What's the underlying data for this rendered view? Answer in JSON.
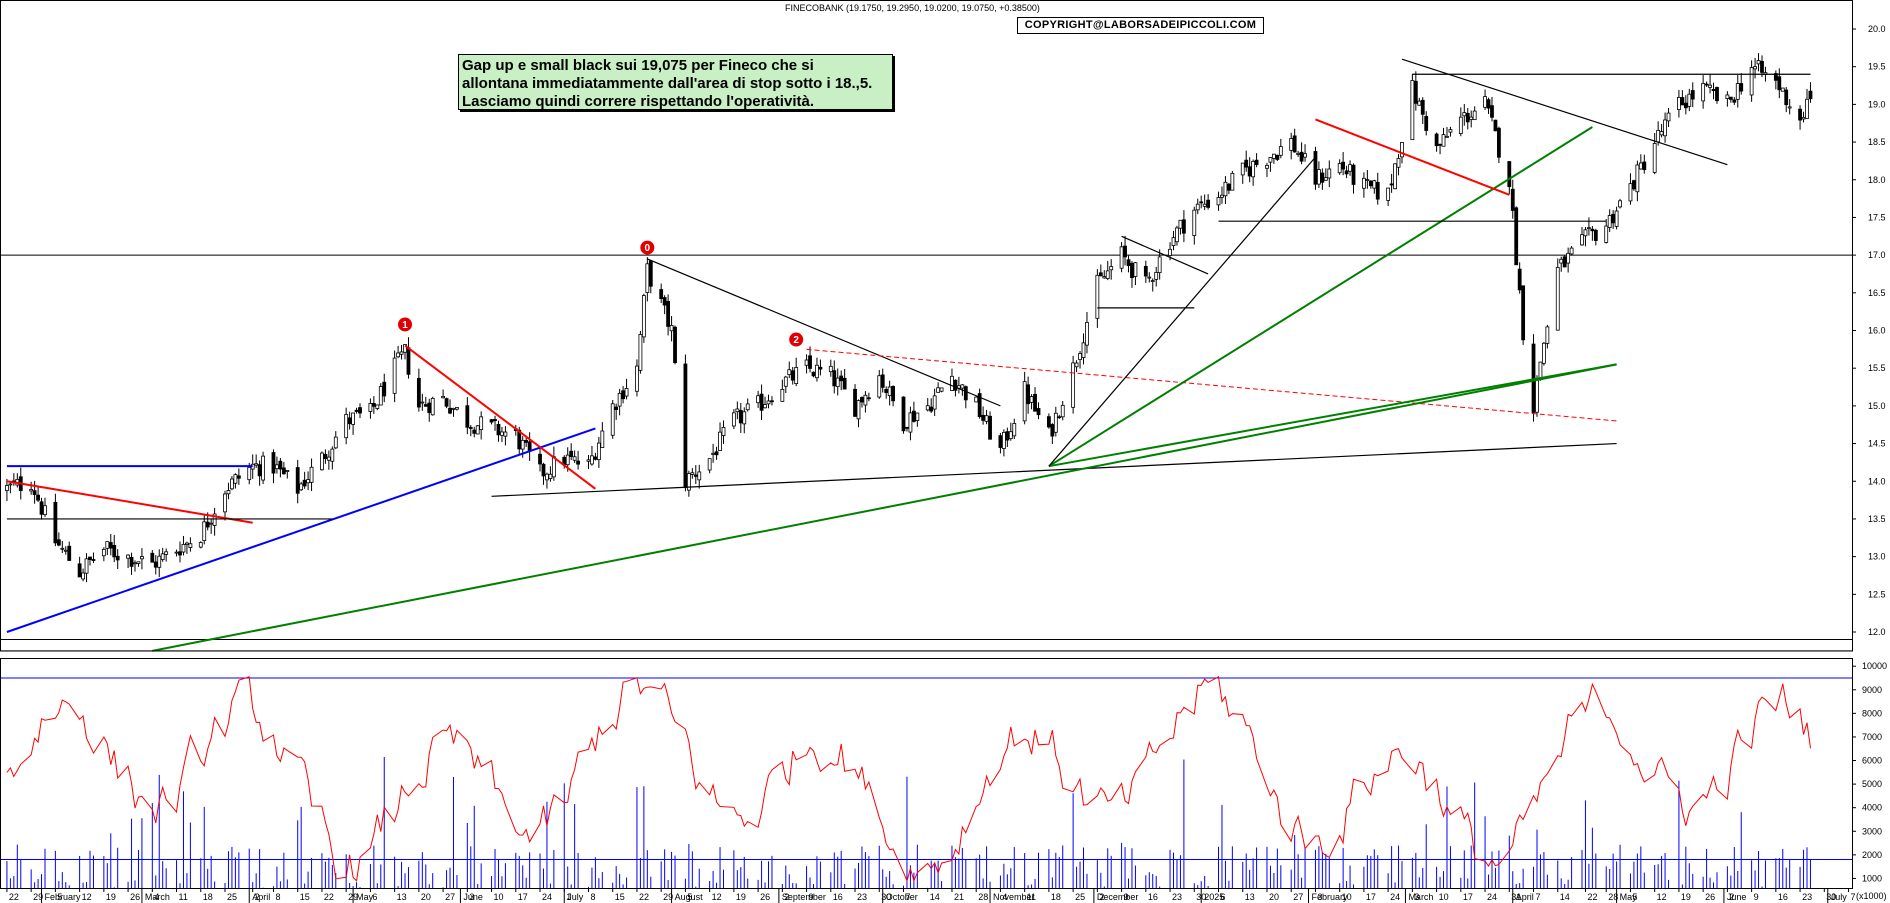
{
  "header": {
    "title": "FINECOBANK (19.1750, 19.2950, 19.0200, 19.0750, +0.38500)",
    "copyright": "COPYRIGHT@LABORSADEIPICCOLI.COM"
  },
  "annotation": {
    "lines": [
      "Gap up e small black sui 19,075 per Fineco che si",
      "allontana immediatammente dall'area di stop sotto i 18.,5.",
      "Lasciamo quindi correre rispettando l'operatività."
    ]
  },
  "wave_labels": [
    "0",
    "1",
    "2"
  ],
  "price_axis": {
    "ticks": [
      "20.0",
      "19.5",
      "19.0",
      "18.5",
      "18.0",
      "17.5",
      "17.0",
      "16.5",
      "16.0",
      "15.5",
      "15.0",
      "14.5",
      "14.0",
      "13.5",
      "13.0",
      "12.5",
      "12.0"
    ]
  },
  "volume_axis": {
    "ticks": [
      "10000",
      "9000",
      "8000",
      "7000",
      "6000",
      "5000",
      "4000",
      "3000",
      "2000",
      "1000"
    ],
    "unit": "(x1000)"
  },
  "x_axis": {
    "days": [
      "22",
      "29",
      "5",
      "12",
      "19",
      "26",
      "4",
      "11",
      "18",
      "25",
      "2",
      "8",
      "15",
      "22",
      "29",
      "6",
      "13",
      "20",
      "27",
      "3",
      "10",
      "17",
      "24",
      "1",
      "8",
      "15",
      "22",
      "29",
      "5",
      "12",
      "19",
      "26",
      "2",
      "9",
      "16",
      "23",
      "30",
      "7",
      "14",
      "21",
      "28",
      "4",
      "11",
      "18",
      "25",
      "2",
      "9",
      "16",
      "23",
      "30",
      "6",
      "13",
      "20",
      "27",
      "3",
      "10",
      "17",
      "24",
      "3",
      "10",
      "17",
      "24",
      "31",
      "7",
      "14",
      "22",
      "28",
      "5",
      "12",
      "19",
      "26",
      "2",
      "9",
      "16",
      "23",
      "30",
      "7"
    ],
    "months": [
      "February",
      "March",
      "April",
      "May",
      "June",
      "July",
      "August",
      "September",
      "October",
      "November",
      "December",
      "2025",
      "February",
      "March",
      "April",
      "May",
      "June",
      "July"
    ]
  },
  "chart_data": {
    "type": "candlestick",
    "title": "FINECOBANK (19.1750, 19.2950, 19.0200, 19.0750, +0.38500)",
    "last_bar": {
      "open": 19.175,
      "high": 19.295,
      "low": 19.02,
      "close": 19.075,
      "change": 0.385
    },
    "y_range": [
      11.75,
      20.2
    ],
    "volume_range": [
      0,
      10500
    ],
    "x_range": [
      "2024-01-22",
      "2025-07-07"
    ],
    "price_anchors": [
      [
        "2024-01-22",
        13.9
      ],
      [
        "2024-01-29",
        14.0
      ],
      [
        "2024-02-05",
        13.2
      ],
      [
        "2024-02-12",
        12.8
      ],
      [
        "2024-02-19",
        13.1
      ],
      [
        "2024-02-26",
        13.0
      ],
      [
        "2024-03-04",
        12.9
      ],
      [
        "2024-03-11",
        13.1
      ],
      [
        "2024-03-18",
        13.3
      ],
      [
        "2024-03-25",
        13.9
      ],
      [
        "2024-04-02",
        14.2
      ],
      [
        "2024-04-08",
        14.2
      ],
      [
        "2024-04-15",
        13.9
      ],
      [
        "2024-04-22",
        14.3
      ],
      [
        "2024-04-29",
        14.8
      ],
      [
        "2024-05-06",
        14.9
      ],
      [
        "2024-05-13",
        15.5
      ],
      [
        "2024-05-16",
        15.7
      ],
      [
        "2024-05-20",
        15.0
      ],
      [
        "2024-05-27",
        15.1
      ],
      [
        "2024-06-03",
        14.8
      ],
      [
        "2024-06-10",
        14.7
      ],
      [
        "2024-06-17",
        14.6
      ],
      [
        "2024-06-24",
        14.1
      ],
      [
        "2024-07-01",
        14.3
      ],
      [
        "2024-07-08",
        14.2
      ],
      [
        "2024-07-15",
        15.0
      ],
      [
        "2024-07-22",
        15.5
      ],
      [
        "2024-07-25",
        16.8
      ],
      [
        "2024-08-01",
        16.0
      ],
      [
        "2024-08-05",
        14.0
      ],
      [
        "2024-08-12",
        14.3
      ],
      [
        "2024-08-19",
        14.8
      ],
      [
        "2024-08-26",
        15.0
      ],
      [
        "2024-09-02",
        15.3
      ],
      [
        "2024-09-09",
        15.5
      ],
      [
        "2024-09-16",
        15.4
      ],
      [
        "2024-09-23",
        15.0
      ],
      [
        "2024-09-30",
        15.4
      ],
      [
        "2024-10-07",
        14.8
      ],
      [
        "2024-10-14",
        15.0
      ],
      [
        "2024-10-21",
        15.4
      ],
      [
        "2024-10-28",
        15.0
      ],
      [
        "2024-11-04",
        14.4
      ],
      [
        "2024-11-11",
        15.2
      ],
      [
        "2024-11-18",
        14.6
      ],
      [
        "2024-11-25",
        15.5
      ],
      [
        "2024-12-02",
        16.6
      ],
      [
        "2024-12-09",
        17.0
      ],
      [
        "2024-12-16",
        16.6
      ],
      [
        "2024-12-23",
        17.2
      ],
      [
        "2024-12-30",
        17.6
      ],
      [
        "2025-01-06",
        17.8
      ],
      [
        "2025-01-13",
        18.1
      ],
      [
        "2025-01-20",
        18.3
      ],
      [
        "2025-01-27",
        18.5
      ],
      [
        "2025-02-03",
        18.0
      ],
      [
        "2025-02-10",
        18.2
      ],
      [
        "2025-02-17",
        17.9
      ],
      [
        "2025-02-24",
        17.8
      ],
      [
        "2025-03-03",
        19.2
      ],
      [
        "2025-03-10",
        18.4
      ],
      [
        "2025-03-17",
        18.8
      ],
      [
        "2025-03-24",
        19.0
      ],
      [
        "2025-03-31",
        18.0
      ],
      [
        "2025-04-04",
        16.0
      ],
      [
        "2025-04-07",
        15.0
      ],
      [
        "2025-04-09",
        15.6
      ],
      [
        "2025-04-14",
        16.8
      ],
      [
        "2025-04-22",
        17.2
      ],
      [
        "2025-04-28",
        17.4
      ],
      [
        "2025-05-05",
        17.9
      ],
      [
        "2025-05-12",
        18.5
      ],
      [
        "2025-05-19",
        19.0
      ],
      [
        "2025-05-26",
        19.2
      ],
      [
        "2025-06-02",
        19.0
      ],
      [
        "2025-06-09",
        19.5
      ],
      [
        "2025-06-16",
        19.3
      ],
      [
        "2025-06-23",
        18.8
      ],
      [
        "2025-06-26",
        19.075
      ]
    ],
    "oscillator": {
      "name": "",
      "color": "#ff0000",
      "overbought": 9500,
      "oversold": 1800
    },
    "volume_color": "#0000ff",
    "reference_lines": [
      {
        "type": "horizontal",
        "value": 17.0,
        "color": "#000000"
      },
      {
        "type": "horizontal",
        "value": 11.9,
        "color": "#000000"
      },
      {
        "type": "horizontal",
        "value": 11.75,
        "color": "#000000"
      }
    ],
    "trendlines": [
      {
        "color": "#0000ff",
        "from": [
          "2024-01-22",
          12.0
        ],
        "to": [
          "2024-07-10",
          14.7
        ]
      },
      {
        "color": "#0000ff",
        "from": [
          "2024-01-22",
          14.2
        ],
        "to": [
          "2024-04-02",
          14.2
        ]
      },
      {
        "color": "#ff0000",
        "from": [
          "2024-01-22",
          14.0
        ],
        "to": [
          "2024-04-02",
          13.45
        ]
      },
      {
        "color": "#000000",
        "from": [
          "2024-01-22",
          13.5
        ],
        "to": [
          "2024-04-25",
          13.5
        ]
      },
      {
        "color": "#ff0000",
        "from": [
          "2024-05-16",
          15.8
        ],
        "to": [
          "2024-07-10",
          13.9
        ]
      },
      {
        "color": "#000000",
        "from": [
          "2024-06-10",
          13.8
        ],
        "to": [
          "2025-05-01",
          14.5
        ]
      },
      {
        "color": "#000000",
        "from": [
          "2024-07-25",
          16.95
        ],
        "to": [
          "2024-11-04",
          15.0
        ]
      },
      {
        "color": "#ff0000",
        "dashed": true,
        "from": [
          "2024-09-09",
          15.75
        ],
        "to": [
          "2025-05-01",
          14.8
        ]
      },
      {
        "color": "#008000",
        "from": [
          "2024-03-04",
          11.75
        ],
        "to": [
          "2025-05-01",
          15.55
        ]
      },
      {
        "color": "#008000",
        "from": [
          "2024-11-18",
          14.2
        ],
        "to": [
          "2025-04-24",
          18.7
        ]
      },
      {
        "color": "#008000",
        "from": [
          "2024-11-18",
          14.2
        ],
        "to": [
          "2025-05-01",
          15.55
        ]
      },
      {
        "color": "#000000",
        "from": [
          "2024-11-18",
          14.2
        ],
        "to": [
          "2025-02-03",
          18.3
        ]
      },
      {
        "color": "#000000",
        "from": [
          "2024-12-02",
          16.3
        ],
        "to": [
          "2024-12-30",
          16.3
        ]
      },
      {
        "color": "#000000",
        "from": [
          "2024-12-09",
          17.25
        ],
        "to": [
          "2025-01-03",
          16.75
        ]
      },
      {
        "color": "#000000",
        "from": [
          "2025-01-06",
          17.45
        ],
        "to": [
          "2025-04-28",
          17.45
        ]
      },
      {
        "color": "#ff0000",
        "from": [
          "2025-02-03",
          18.8
        ],
        "to": [
          "2025-03-31",
          17.8
        ]
      },
      {
        "color": "#000000",
        "from": [
          "2025-02-28",
          19.6
        ],
        "to": [
          "2025-06-02",
          18.2
        ]
      },
      {
        "color": "#000000",
        "from": [
          "2025-03-03",
          19.4
        ],
        "to": [
          "2025-06-26",
          19.4
        ]
      }
    ],
    "wave_points": [
      {
        "label": "0",
        "date": "2024-07-25",
        "price": 17.1
      },
      {
        "label": "1",
        "date": "2024-05-16",
        "price": 16.08
      },
      {
        "label": "2",
        "date": "2024-09-06",
        "price": 15.88
      }
    ]
  }
}
